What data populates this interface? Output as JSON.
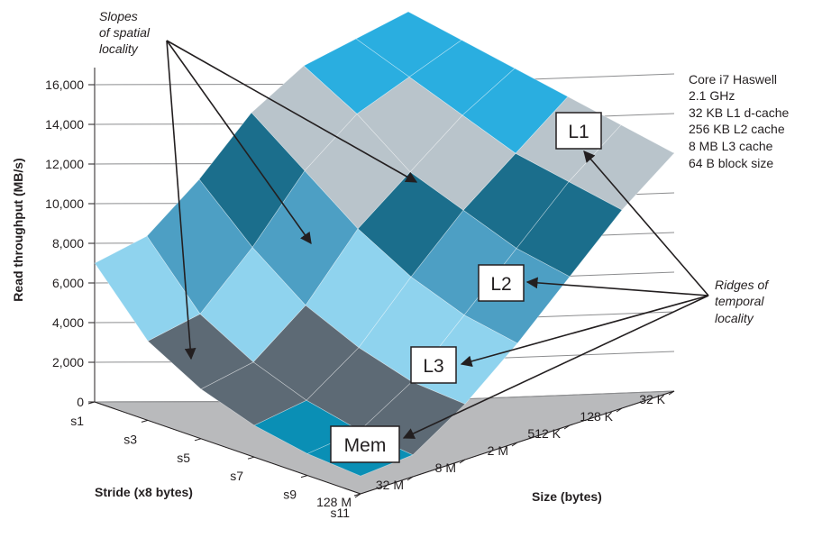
{
  "chart_data": {
    "type": "surface3d",
    "title": "",
    "zlabel": "Read throughput (MB/s)",
    "xlabel": "Size (bytes)",
    "ylabel": "Stride (x8 bytes)",
    "z_ticks": [
      "0",
      "2,000",
      "4,000",
      "6,000",
      "8,000",
      "10,000",
      "12,000",
      "14,000",
      "16,000"
    ],
    "zlim": [
      0,
      16000
    ],
    "stride_ticks": [
      "s1",
      "s3",
      "s5",
      "s7",
      "s9",
      "s11"
    ],
    "size_ticks": [
      "32 K",
      "128 K",
      "512 K",
      "2 M",
      "8 M",
      "32 M",
      "128 M"
    ],
    "specs": [
      "Core i7 Haswell",
      "2.1 GHz",
      "32 KB L1 d-cache",
      "256 KB L2 cache",
      "8 MB L3 cache",
      "64 B block size"
    ],
    "annotations": {
      "slopes": [
        "Slopes",
        "of spatial",
        "locality"
      ],
      "ridges": [
        "Ridges of",
        "temporal",
        "locality"
      ],
      "regions": [
        "L1",
        "L2",
        "L3",
        "Mem"
      ]
    },
    "series": [
      {
        "name": "s1",
        "values": [
          14500,
          14000,
          13500,
          12000,
          9500,
          7500,
          7000
        ]
      },
      {
        "name": "s3",
        "values": [
          14000,
          13000,
          12000,
          10000,
          7000,
          4500,
          4000
        ]
      },
      {
        "name": "s5",
        "values": [
          13500,
          12000,
          10000,
          8000,
          5000,
          3000,
          2500
        ]
      },
      {
        "name": "s7",
        "values": [
          13000,
          11000,
          9000,
          6500,
          3800,
          2000,
          1600
        ]
      },
      {
        "name": "s9",
        "values": [
          12500,
          10500,
          8000,
          5500,
          3000,
          1400,
          1100
        ]
      },
      {
        "name": "s11",
        "values": [
          12000,
          10000,
          7500,
          5000,
          2800,
          1100,
          900
        ]
      }
    ]
  }
}
